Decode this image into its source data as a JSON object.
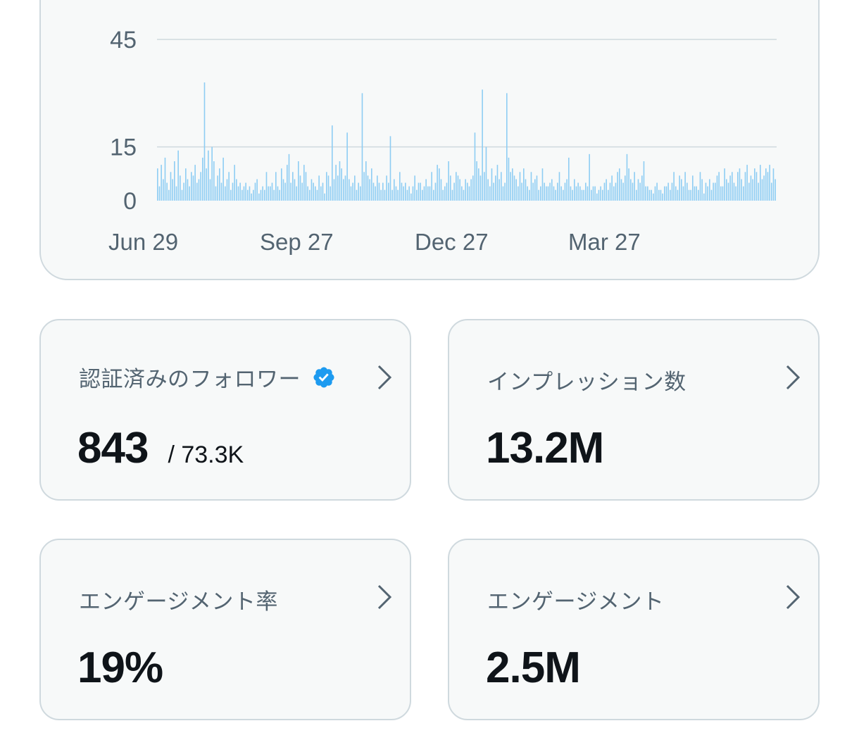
{
  "chart_data": {
    "type": "bar",
    "title": "",
    "xlabel": "",
    "ylabel": "",
    "ylim": [
      0,
      45
    ],
    "y_ticks": [
      "45",
      "15",
      "0"
    ],
    "x_ticks": [
      "Jun 29",
      "Sep 27",
      "Dec 27",
      "Mar 27"
    ],
    "grid": true,
    "color": "#8ecdf3",
    "x_start": "Jun 21",
    "x_end": "Jun 19",
    "values": [
      9,
      4,
      10,
      6,
      12,
      5,
      3,
      8,
      6,
      11,
      4,
      14,
      7,
      3,
      5,
      9,
      6,
      4,
      8,
      7,
      10,
      5,
      6,
      8,
      12,
      33,
      9,
      14,
      6,
      15,
      11,
      4,
      7,
      9,
      5,
      12,
      4,
      6,
      8,
      3,
      5,
      10,
      6,
      4,
      5,
      3,
      4,
      5,
      3,
      4,
      2,
      3,
      5,
      6,
      2,
      3,
      4,
      3,
      8,
      4,
      4,
      5,
      3,
      8,
      4,
      3,
      9,
      6,
      5,
      10,
      13,
      5,
      8,
      6,
      4,
      11,
      7,
      5,
      10,
      8,
      4,
      3,
      6,
      5,
      4,
      3,
      7,
      4,
      5,
      2,
      8,
      7,
      4,
      21,
      6,
      10,
      7,
      11,
      9,
      6,
      7,
      19,
      6,
      4,
      5,
      7,
      3,
      5,
      4,
      30,
      8,
      11,
      7,
      6,
      9,
      5,
      4,
      7,
      5,
      3,
      5,
      3,
      7,
      5,
      18,
      3,
      6,
      4,
      3,
      8,
      5,
      4,
      5,
      3,
      4,
      2,
      4,
      7,
      3,
      5,
      5,
      3,
      4,
      6,
      4,
      4,
      8,
      3,
      5,
      10,
      9,
      6,
      3,
      4,
      5,
      11,
      7,
      3,
      5,
      8,
      7,
      6,
      4,
      3,
      6,
      5,
      4,
      6,
      7,
      19,
      11,
      9,
      7,
      31,
      8,
      15,
      6,
      4,
      9,
      5,
      7,
      10,
      6,
      8,
      4,
      5,
      30,
      12,
      8,
      9,
      7,
      6,
      4,
      8,
      5,
      9,
      6,
      4,
      3,
      8,
      5,
      6,
      7,
      3,
      4,
      9,
      5,
      4,
      4,
      5,
      6,
      4,
      3,
      5,
      8,
      4,
      3,
      5,
      6,
      12,
      4,
      3,
      6,
      4,
      5,
      4,
      3,
      3,
      5,
      4,
      13,
      3,
      4,
      4,
      2,
      3,
      4,
      3,
      5,
      6,
      3,
      5,
      7,
      4,
      5,
      8,
      9,
      6,
      5,
      7,
      13,
      9,
      6,
      5,
      8,
      3,
      6,
      5,
      7,
      11,
      4,
      4,
      3,
      3,
      2,
      4,
      5,
      3,
      3,
      2,
      4,
      4,
      5,
      3,
      5,
      8,
      4,
      3,
      7,
      6,
      4,
      8,
      5,
      3,
      3,
      7,
      4,
      4,
      3,
      8,
      6,
      2,
      5,
      4,
      6,
      3,
      5,
      5,
      7,
      8,
      4,
      4,
      9,
      6,
      5,
      7,
      8,
      5,
      4,
      8,
      9,
      6,
      4,
      8,
      10,
      5,
      7,
      6,
      9,
      8,
      5,
      10,
      6,
      7,
      9,
      8,
      10,
      5,
      9,
      6
    ]
  },
  "cards": [
    {
      "label": "認証済みのフォロワー",
      "value": "843",
      "sub": "/ 73.3K",
      "verified": true
    },
    {
      "label": "インプレッション数",
      "value": "13.2M"
    },
    {
      "label": "エンゲージメント率",
      "value": "19%"
    },
    {
      "label": "エンゲージメント",
      "value": "2.5M"
    }
  ],
  "icons": {
    "verified": "verified-badge-icon",
    "chevron": "chevron-right-icon"
  },
  "colors": {
    "verified": "#1d9bf0",
    "bar": "#8ecdf3",
    "grid": "#cfd9de",
    "axis_text": "#536471"
  }
}
